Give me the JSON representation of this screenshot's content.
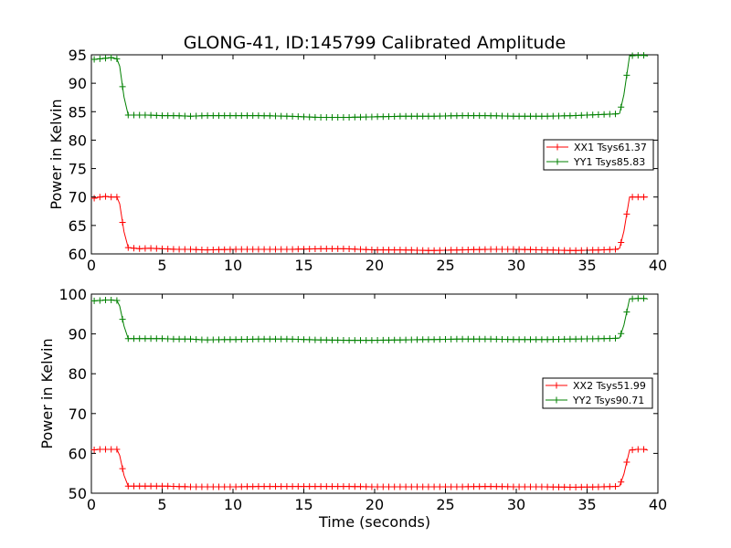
{
  "chart_data": {
    "title": "GLONG-41, ID:145799 Calibrated Amplitude",
    "xlabel": "Time (seconds)",
    "panels": [
      {
        "type": "line",
        "ylabel": "Power in Kelvin",
        "xlim": [
          0,
          40
        ],
        "ylim": [
          60,
          95
        ],
        "xticks": [
          0,
          5,
          10,
          15,
          20,
          25,
          30,
          35,
          40
        ],
        "yticks": [
          60,
          65,
          70,
          75,
          80,
          85,
          90,
          95
        ],
        "legend": "center-right",
        "series": [
          {
            "name": "XX1 Tsys61.37",
            "color": "#ff0000",
            "x": [
              0.2,
              0.6,
              1.0,
              1.4,
              1.8,
              2.0,
              2.3,
              2.6,
              3.0,
              3.5,
              4.0,
              5.0,
              6.0,
              7.0,
              8.0,
              10.0,
              12.0,
              14.0,
              16.0,
              18.0,
              20.0,
              22.0,
              24.0,
              26.0,
              28.0,
              30.0,
              32.0,
              34.0,
              36.0,
              37.0,
              37.3,
              37.6,
              38.0,
              38.5,
              39.0,
              39.3
            ],
            "y": [
              69.8,
              70.0,
              70.1,
              70.0,
              70.0,
              68.8,
              63.9,
              61.1,
              61.0,
              60.9,
              61.0,
              60.9,
              60.8,
              60.8,
              60.7,
              60.8,
              60.8,
              60.8,
              60.9,
              60.9,
              60.7,
              60.7,
              60.6,
              60.7,
              60.8,
              60.8,
              60.7,
              60.6,
              60.7,
              60.8,
              61.0,
              64.0,
              70.0,
              70.0,
              70.0,
              70.0
            ]
          },
          {
            "name": "YY1 Tsys85.83",
            "color": "#008000",
            "x": [
              0.2,
              0.6,
              1.0,
              1.4,
              1.8,
              2.0,
              2.3,
              2.6,
              3.0,
              3.5,
              4.0,
              5.0,
              6.0,
              7.0,
              8.0,
              10.0,
              12.0,
              14.0,
              16.0,
              18.0,
              20.0,
              22.0,
              24.0,
              26.0,
              28.0,
              30.0,
              32.0,
              34.0,
              36.0,
              37.0,
              37.3,
              37.6,
              38.0,
              38.5,
              39.0,
              39.3
            ],
            "y": [
              94.2,
              94.3,
              94.4,
              94.5,
              94.3,
              93.0,
              87.6,
              84.4,
              84.4,
              84.4,
              84.4,
              84.3,
              84.3,
              84.2,
              84.3,
              84.3,
              84.3,
              84.2,
              84.0,
              84.0,
              84.1,
              84.2,
              84.2,
              84.3,
              84.3,
              84.2,
              84.2,
              84.3,
              84.5,
              84.6,
              84.7,
              88.0,
              94.8,
              94.9,
              94.9,
              94.8
            ]
          }
        ]
      },
      {
        "type": "line",
        "ylabel": "Power in Kelvin",
        "xlim": [
          0,
          40
        ],
        "ylim": [
          50,
          100
        ],
        "xticks": [
          0,
          5,
          10,
          15,
          20,
          25,
          30,
          35,
          40
        ],
        "yticks": [
          50,
          60,
          70,
          80,
          90,
          100
        ],
        "legend": "center-right",
        "series": [
          {
            "name": "XX2 Tsys51.99",
            "color": "#ff0000",
            "x": [
              0.2,
              0.6,
              1.0,
              1.4,
              1.8,
              2.0,
              2.3,
              2.6,
              3.0,
              3.5,
              4.0,
              5.0,
              6.0,
              7.0,
              8.0,
              10.0,
              12.0,
              14.0,
              16.0,
              18.0,
              20.0,
              22.0,
              24.0,
              26.0,
              28.0,
              30.0,
              32.0,
              34.0,
              36.0,
              37.0,
              37.3,
              37.6,
              38.0,
              38.5,
              39.0,
              39.3
            ],
            "y": [
              60.9,
              61.0,
              61.0,
              61.0,
              61.0,
              59.5,
              54.5,
              51.8,
              51.8,
              51.8,
              51.8,
              51.8,
              51.7,
              51.6,
              51.6,
              51.6,
              51.7,
              51.7,
              51.7,
              51.7,
              51.6,
              51.6,
              51.6,
              51.6,
              51.7,
              51.6,
              51.6,
              51.5,
              51.6,
              51.7,
              51.8,
              54.8,
              60.8,
              61.0,
              61.0,
              60.8
            ]
          },
          {
            "name": "YY2 Tsys90.71",
            "color": "#008000",
            "x": [
              0.2,
              0.6,
              1.0,
              1.4,
              1.8,
              2.0,
              2.3,
              2.6,
              3.0,
              3.5,
              4.0,
              5.0,
              6.0,
              7.0,
              8.0,
              10.0,
              12.0,
              14.0,
              16.0,
              18.0,
              20.0,
              22.0,
              24.0,
              26.0,
              28.0,
              30.0,
              32.0,
              34.0,
              36.0,
              37.0,
              37.3,
              37.6,
              38.0,
              38.5,
              39.0,
              39.3
            ],
            "y": [
              98.3,
              98.4,
              98.5,
              98.5,
              98.4,
              97.0,
              92.0,
              88.8,
              88.8,
              88.8,
              88.8,
              88.8,
              88.7,
              88.7,
              88.5,
              88.6,
              88.7,
              88.7,
              88.5,
              88.4,
              88.4,
              88.5,
              88.6,
              88.7,
              88.7,
              88.6,
              88.6,
              88.7,
              88.8,
              88.9,
              89.0,
              92.2,
              98.8,
              98.9,
              98.9,
              98.8
            ]
          }
        ]
      }
    ]
  }
}
